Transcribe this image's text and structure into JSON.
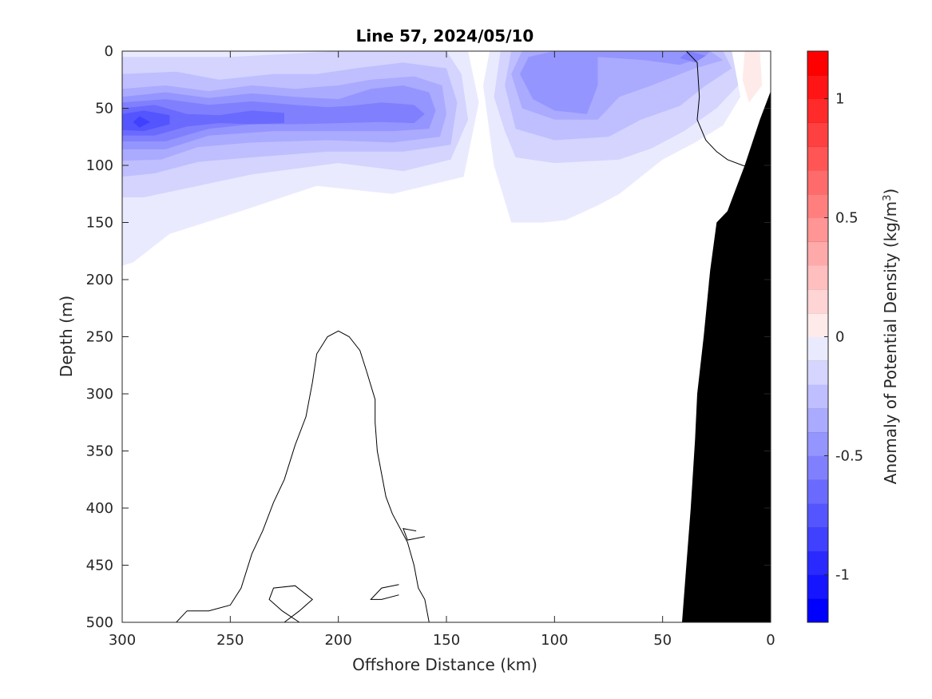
{
  "chart_data": {
    "type": "heatmap",
    "title": "Line 57, 2024/05/10",
    "xlabel": "Offshore Distance (km)",
    "ylabel": "Depth (m)",
    "xlim": [
      300,
      0
    ],
    "ylim": [
      0,
      500
    ],
    "x_reversed": true,
    "y_reversed": true,
    "x_ticks": [
      300,
      250,
      200,
      150,
      100,
      50,
      0
    ],
    "y_ticks": [
      0,
      50,
      100,
      150,
      200,
      250,
      300,
      350,
      400,
      450,
      500
    ],
    "colorbar": {
      "label": "Anomaly of Potential Density (kg/m",
      "label_sup": "3",
      "label_close": ")",
      "range": [
        -1.2,
        1.2
      ],
      "step": 0.1,
      "ticks": [
        {
          "value": -1,
          "text": "-1"
        },
        {
          "value": -0.5,
          "text": "-0.5"
        },
        {
          "value": 0,
          "text": "0"
        },
        {
          "value": 0.5,
          "text": "0.5"
        },
        {
          "value": 1,
          "text": "1"
        }
      ]
    },
    "colors": {
      "negative_max": "#0000ff",
      "positive_max": "#ff0000",
      "neutral": "#ffffff",
      "bathymetry": "#000000",
      "contour": "#000000"
    },
    "contour_levels": [
      {
        "level": -0.9,
        "polygon": [
          [
            292,
            57
          ],
          [
            295,
            62
          ],
          [
            292,
            67
          ],
          [
            287,
            62
          ]
        ]
      },
      {
        "level": -0.8,
        "polygon": [
          [
            300,
            55
          ],
          [
            290,
            52
          ],
          [
            278,
            56
          ],
          [
            278,
            64
          ],
          [
            290,
            70
          ],
          [
            300,
            69
          ]
        ]
      },
      {
        "level": -0.7,
        "polygon": [
          [
            300,
            50
          ],
          [
            285,
            47
          ],
          [
            270,
            55
          ],
          [
            255,
            56
          ],
          [
            240,
            52
          ],
          [
            225,
            54
          ],
          [
            225,
            63
          ],
          [
            240,
            64
          ],
          [
            255,
            63
          ],
          [
            270,
            66
          ],
          [
            285,
            74
          ],
          [
            300,
            74
          ]
        ]
      },
      {
        "level": -0.6,
        "polygon": [
          [
            300,
            45
          ],
          [
            280,
            42
          ],
          [
            260,
            47
          ],
          [
            240,
            44
          ],
          [
            220,
            47
          ],
          [
            205,
            49
          ],
          [
            195,
            48
          ],
          [
            180,
            45
          ],
          [
            165,
            47
          ],
          [
            160,
            55
          ],
          [
            165,
            63
          ],
          [
            180,
            62
          ],
          [
            200,
            63
          ],
          [
            220,
            64
          ],
          [
            240,
            64
          ],
          [
            260,
            68
          ],
          [
            280,
            79
          ],
          [
            300,
            79
          ]
        ]
      },
      {
        "level": -0.5,
        "polygon": [
          [
            300,
            40
          ],
          [
            280,
            36
          ],
          [
            260,
            41
          ],
          [
            240,
            37
          ],
          [
            220,
            40
          ],
          [
            200,
            42
          ],
          [
            185,
            33
          ],
          [
            170,
            30
          ],
          [
            158,
            36
          ],
          [
            155,
            52
          ],
          [
            158,
            68
          ],
          [
            175,
            70
          ],
          [
            200,
            70
          ],
          [
            230,
            70
          ],
          [
            260,
            74
          ],
          [
            280,
            86
          ],
          [
            300,
            86
          ]
        ]
      },
      {
        "level": -0.4,
        "polygon": [
          [
            300,
            33
          ],
          [
            280,
            30
          ],
          [
            260,
            35
          ],
          [
            240,
            30
          ],
          [
            220,
            33
          ],
          [
            200,
            30
          ],
          [
            185,
            25
          ],
          [
            165,
            22
          ],
          [
            152,
            30
          ],
          [
            150,
            55
          ],
          [
            153,
            75
          ],
          [
            175,
            80
          ],
          [
            205,
            78
          ],
          [
            240,
            80
          ],
          [
            265,
            84
          ],
          [
            282,
            95
          ],
          [
            300,
            96
          ]
        ]
      },
      {
        "level": -0.3,
        "polygon": [
          [
            300,
            20
          ],
          [
            275,
            18
          ],
          [
            255,
            25
          ],
          [
            230,
            20
          ],
          [
            210,
            20
          ],
          [
            192,
            15
          ],
          [
            170,
            10
          ],
          [
            150,
            15
          ],
          [
            145,
            45
          ],
          [
            148,
            82
          ],
          [
            170,
            88
          ],
          [
            205,
            88
          ],
          [
            240,
            93
          ],
          [
            265,
            97
          ],
          [
            285,
            107
          ],
          [
            300,
            110
          ]
        ]
      },
      {
        "level": -0.2,
        "polygon": [
          [
            300,
            5
          ],
          [
            250,
            5
          ],
          [
            200,
            0
          ],
          [
            150,
            0
          ],
          [
            143,
            20
          ],
          [
            140,
            60
          ],
          [
            148,
            95
          ],
          [
            170,
            105
          ],
          [
            200,
            98
          ],
          [
            240,
            108
          ],
          [
            270,
            120
          ],
          [
            290,
            128
          ],
          [
            300,
            128
          ]
        ]
      },
      {
        "level": -0.1,
        "polygon": [
          [
            300,
            0
          ],
          [
            140,
            0
          ],
          [
            135,
            45
          ],
          [
            142,
            110
          ],
          [
            175,
            125
          ],
          [
            210,
            118
          ],
          [
            245,
            140
          ],
          [
            278,
            160
          ],
          [
            295,
            185
          ],
          [
            300,
            188
          ]
        ]
      },
      {
        "level": -0.6,
        "polygon": [
          [
            38,
            0
          ],
          [
            30,
            4
          ],
          [
            35,
            10
          ],
          [
            42,
            6
          ]
        ]
      },
      {
        "level": -0.5,
        "polygon": [
          [
            80,
            5
          ],
          [
            58,
            8
          ],
          [
            42,
            12
          ],
          [
            30,
            4
          ],
          [
            28,
            0
          ],
          [
            100,
            0
          ],
          [
            112,
            5
          ],
          [
            116,
            20
          ],
          [
            110,
            42
          ],
          [
            100,
            52
          ],
          [
            85,
            55
          ],
          [
            80,
            30
          ]
        ]
      },
      {
        "level": -0.4,
        "polygon": [
          [
            115,
            0
          ],
          [
            28,
            0
          ],
          [
            22,
            8
          ],
          [
            35,
            15
          ],
          [
            55,
            30
          ],
          [
            70,
            40
          ],
          [
            80,
            60
          ],
          [
            100,
            60
          ],
          [
            115,
            50
          ],
          [
            120,
            20
          ]
        ]
      },
      {
        "level": -0.3,
        "polygon": [
          [
            120,
            0
          ],
          [
            22,
            0
          ],
          [
            18,
            15
          ],
          [
            30,
            30
          ],
          [
            42,
            48
          ],
          [
            60,
            60
          ],
          [
            75,
            75
          ],
          [
            100,
            78
          ],
          [
            118,
            68
          ],
          [
            123,
            30
          ]
        ]
      },
      {
        "level": -0.2,
        "polygon": [
          [
            125,
            0
          ],
          [
            18,
            0
          ],
          [
            15,
            30
          ],
          [
            25,
            50
          ],
          [
            40,
            70
          ],
          [
            55,
            85
          ],
          [
            70,
            95
          ],
          [
            100,
            98
          ],
          [
            118,
            93
          ],
          [
            123,
            70
          ],
          [
            128,
            40
          ]
        ]
      },
      {
        "level": -0.1,
        "polygon": [
          [
            130,
            0
          ],
          [
            18,
            0
          ],
          [
            14,
            40
          ],
          [
            22,
            65
          ],
          [
            35,
            80
          ],
          [
            50,
            95
          ],
          [
            60,
            110
          ],
          [
            70,
            125
          ],
          [
            80,
            135
          ],
          [
            88,
            142
          ],
          [
            95,
            148
          ],
          [
            105,
            150
          ],
          [
            120,
            150
          ],
          [
            128,
            100
          ],
          [
            133,
            30
          ]
        ]
      },
      {
        "level": 0.1,
        "polygon": [
          [
            12,
            0
          ],
          [
            5,
            0
          ],
          [
            4,
            30
          ],
          [
            10,
            45
          ],
          [
            13,
            25
          ]
        ]
      },
      {
        "level": 0.1,
        "polygon": [
          [
            27,
            192
          ],
          [
            25,
            200
          ],
          [
            27,
            210
          ],
          [
            29,
            202
          ]
        ]
      },
      {
        "level": 0.1,
        "polygon": [
          [
            27,
            238
          ],
          [
            25,
            245
          ],
          [
            27,
            252
          ],
          [
            29,
            246
          ]
        ]
      }
    ],
    "zero_contours": [
      [
        [
          300,
          500
        ],
        [
          300,
          500
        ]
      ],
      [
        [
          39,
          0
        ],
        [
          34,
          10
        ],
        [
          33,
          40
        ],
        [
          34,
          60
        ],
        [
          30,
          78
        ],
        [
          25,
          88
        ],
        [
          20,
          95
        ],
        [
          13,
          100
        ],
        [
          5,
          104
        ],
        [
          5,
          110
        ],
        [
          -5,
          112
        ],
        [
          -8,
          130
        ],
        [
          -12,
          160
        ],
        [
          -15,
          200
        ],
        [
          -15,
          250
        ],
        [
          -16,
          300
        ],
        [
          -16,
          400
        ],
        [
          -16,
          450
        ],
        [
          -22,
          480
        ],
        [
          -23,
          500
        ]
      ],
      [
        [
          158,
          500
        ],
        [
          160,
          480
        ],
        [
          163,
          470
        ],
        [
          165,
          450
        ],
        [
          168,
          430
        ],
        [
          175,
          405
        ],
        [
          178,
          390
        ],
        [
          180,
          370
        ],
        [
          182,
          350
        ],
        [
          183,
          325
        ],
        [
          183,
          305
        ],
        [
          187,
          280
        ],
        [
          190,
          262
        ],
        [
          195,
          250
        ],
        [
          200,
          245
        ],
        [
          205,
          250
        ],
        [
          210,
          265
        ],
        [
          212,
          290
        ],
        [
          215,
          320
        ],
        [
          220,
          345
        ],
        [
          225,
          375
        ],
        [
          230,
          395
        ],
        [
          235,
          420
        ],
        [
          240,
          440
        ],
        [
          245,
          470
        ],
        [
          250,
          485
        ],
        [
          260,
          490
        ],
        [
          270,
          490
        ],
        [
          275,
          500
        ]
      ],
      [
        [
          172,
          467
        ],
        [
          180,
          470
        ],
        [
          185,
          480
        ],
        [
          180,
          480
        ],
        [
          172,
          476
        ]
      ],
      [
        [
          225,
          500
        ],
        [
          218,
          490
        ],
        [
          212,
          480
        ],
        [
          220,
          468
        ],
        [
          230,
          470
        ],
        [
          232,
          480
        ],
        [
          226,
          490
        ],
        [
          218,
          500
        ]
      ],
      [
        [
          164,
          420
        ],
        [
          170,
          418
        ],
        [
          168,
          428
        ],
        [
          160,
          425
        ]
      ]
    ],
    "bathymetry": [
      [
        0,
        35
      ],
      [
        5,
        60
      ],
      [
        12,
        100
      ],
      [
        20,
        140
      ],
      [
        25,
        150
      ],
      [
        28,
        192
      ],
      [
        31,
        250
      ],
      [
        34,
        300
      ],
      [
        35,
        340
      ],
      [
        37,
        400
      ],
      [
        39,
        450
      ],
      [
        41,
        500
      ],
      [
        0,
        500
      ]
    ]
  }
}
